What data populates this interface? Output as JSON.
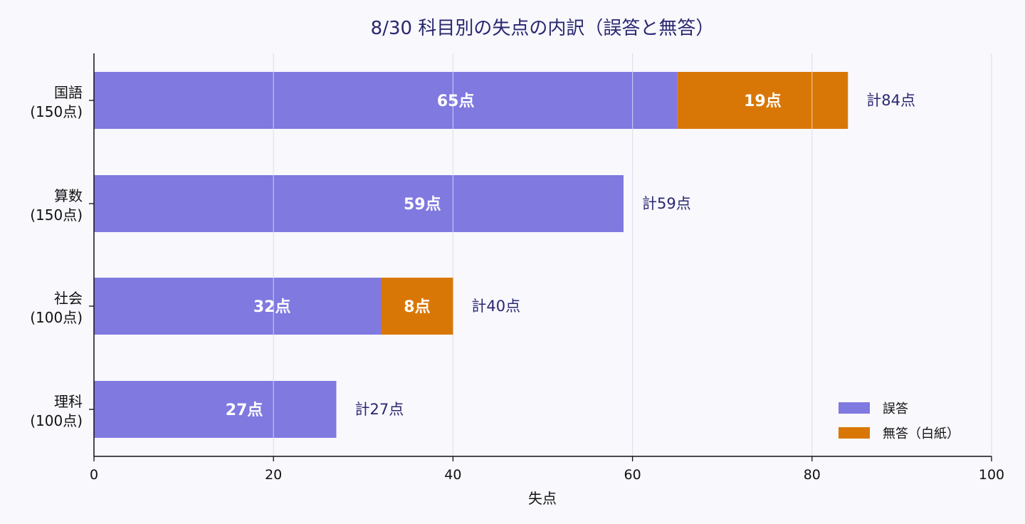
{
  "chart_data": {
    "type": "bar",
    "orientation": "horizontal",
    "stacked": true,
    "title": "8/30 科目別の失点の内訳（誤答と無答）",
    "xlabel": "失点",
    "ylabel": "",
    "xlim": [
      0,
      100
    ],
    "xticks": [
      "0",
      "20",
      "40",
      "60",
      "80",
      "100"
    ],
    "categories": [
      [
        "国語",
        "(150点)"
      ],
      [
        "算数",
        "(150点)"
      ],
      [
        "社会",
        "(100点)"
      ],
      [
        "理科",
        "(100点)"
      ]
    ],
    "series": [
      {
        "name": "誤答",
        "color": "#8079e0",
        "values": [
          65,
          59,
          32,
          27
        ],
        "labels": [
          "65点",
          "59点",
          "32点",
          "27点"
        ]
      },
      {
        "name": "無答（白紙）",
        "color": "#d97706",
        "values": [
          19,
          0,
          8,
          0
        ],
        "labels": [
          "19点",
          "",
          "8点",
          ""
        ]
      }
    ],
    "totals": [
      84,
      59,
      40,
      27
    ],
    "total_labels": [
      "計84点",
      "計59点",
      "計40点",
      "計27点"
    ],
    "grid": "vertical",
    "legend_position": "bottom-right"
  }
}
